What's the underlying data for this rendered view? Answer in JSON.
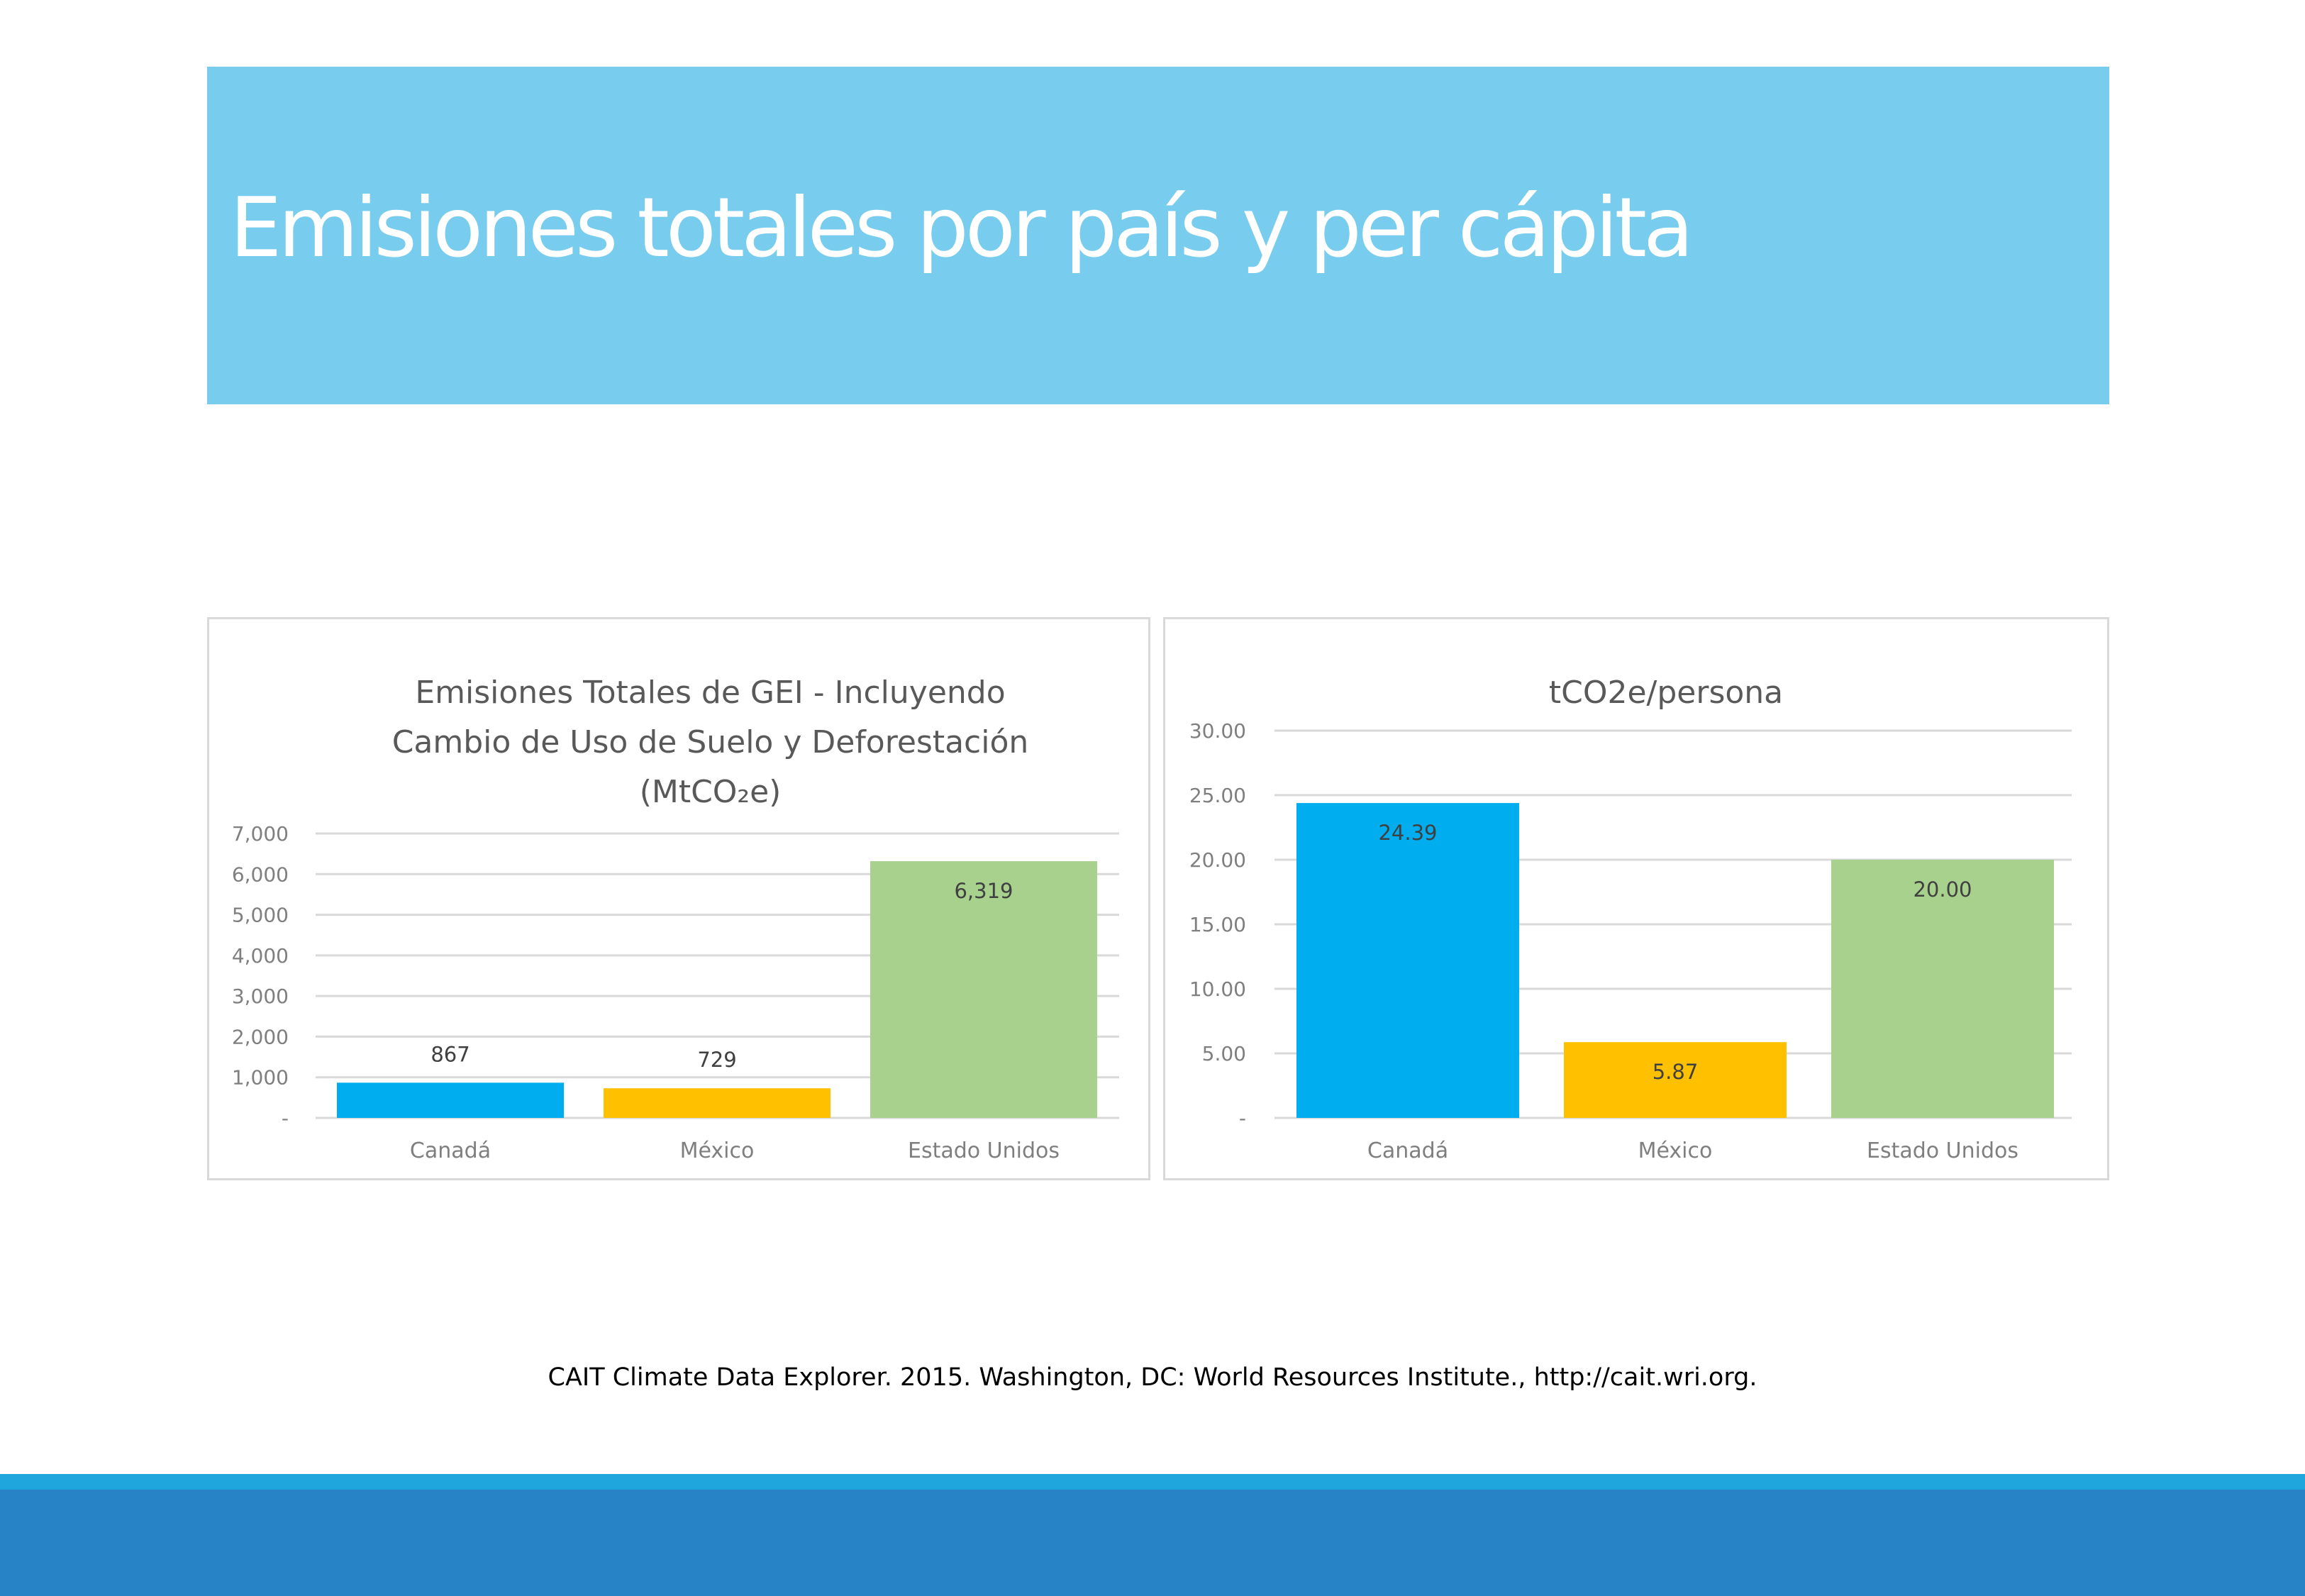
{
  "slide": {
    "title": "Emisiones totales por país y per cápita",
    "source": "CAIT Climate Data Explorer. 2015. Washington, DC: World Resources Institute., http://cait.wri.org.",
    "colors": {
      "banner": "#78cdef",
      "footer_light": "#1fa6dc",
      "footer_dark": "#2883c6"
    }
  },
  "chart_data": [
    {
      "type": "bar",
      "title_lines": [
        "Emisiones Totales de GEI - Incluyendo",
        "Cambio de Uso de Suelo y Deforestación",
        "(MtCO₂e)"
      ],
      "categories": [
        "Canadá",
        "México",
        "Estado Unidos"
      ],
      "values": [
        867,
        729,
        6319
      ],
      "value_labels": [
        "867",
        "729",
        "6,319"
      ],
      "label_position": [
        "outside",
        "outside",
        "inside"
      ],
      "colors": [
        "#00adef",
        "#ffc000",
        "#a9d18e"
      ],
      "ylim": [
        0,
        7000
      ],
      "ticks": [
        0,
        1000,
        2000,
        3000,
        4000,
        5000,
        6000,
        7000
      ],
      "tick_labels": [
        "-",
        "1,000",
        "2,000",
        "3,000",
        "4,000",
        "5,000",
        "6,000",
        "7,000"
      ],
      "grid": true
    },
    {
      "type": "bar",
      "title_lines": [
        "tCO2e/persona"
      ],
      "categories": [
        "Canadá",
        "México",
        "Estado Unidos"
      ],
      "values": [
        24.39,
        5.87,
        20.0
      ],
      "value_labels": [
        "24.39",
        "5.87",
        "20.00"
      ],
      "label_position": [
        "inside",
        "inside",
        "inside"
      ],
      "colors": [
        "#00adef",
        "#ffc000",
        "#a9d18e"
      ],
      "ylim": [
        0,
        30
      ],
      "ticks": [
        0,
        5,
        10,
        15,
        20,
        25,
        30
      ],
      "tick_labels": [
        "-",
        "5.00",
        "10.00",
        "15.00",
        "20.00",
        "25.00",
        "30.00"
      ],
      "grid": true
    }
  ]
}
